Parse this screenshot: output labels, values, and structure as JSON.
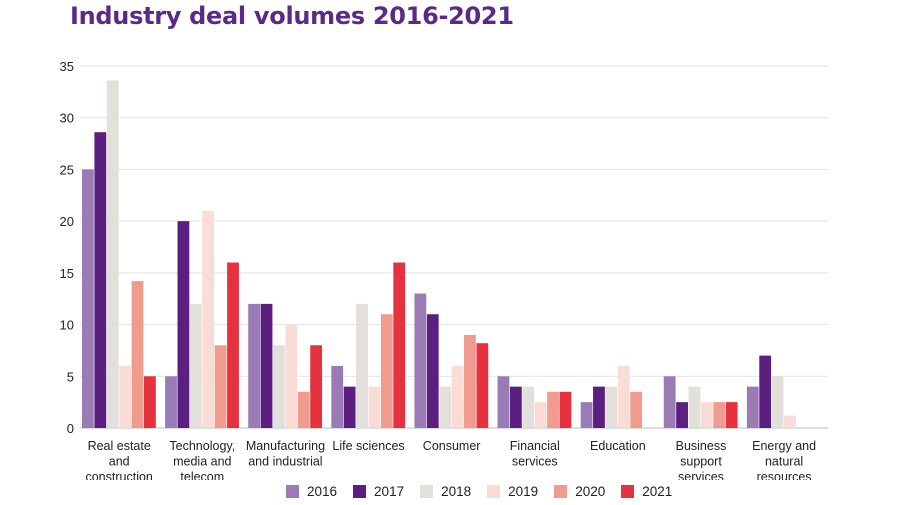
{
  "title": "Industry deal volumes 2016-2021",
  "chart_data": {
    "type": "bar",
    "title": "Industry deal volumes 2016-2021",
    "ylim": [
      0,
      35
    ],
    "yticks": [
      0,
      5,
      10,
      15,
      20,
      25,
      30,
      35
    ],
    "grid": true,
    "legend_position": "bottom",
    "categories": [
      [
        "Real estate",
        "and",
        "construction"
      ],
      [
        "Technology,",
        "media and",
        "telecom"
      ],
      [
        "Manufacturing",
        "and industrial"
      ],
      [
        "Life sciences"
      ],
      [
        "Consumer"
      ],
      [
        "Financial",
        "services"
      ],
      [
        "Education"
      ],
      [
        "Business",
        "support",
        "services"
      ],
      [
        "Energy and",
        "natural",
        "resources"
      ]
    ],
    "series": [
      {
        "name": "2016",
        "color": "#9b7bb5",
        "values": [
          25,
          5,
          12,
          6,
          13,
          5,
          2.5,
          5,
          4
        ]
      },
      {
        "name": "2017",
        "color": "#5b1f80",
        "values": [
          28.6,
          20,
          12,
          4,
          11,
          4,
          4,
          2.5,
          7
        ]
      },
      {
        "name": "2018",
        "color": "#e3e0dc",
        "values": [
          33.6,
          12,
          8,
          12,
          4,
          4,
          4,
          4,
          5
        ]
      },
      {
        "name": "2019",
        "color": "#fadcd6",
        "values": [
          6,
          21,
          10,
          4,
          6,
          2.5,
          6,
          2.5,
          1.2
        ]
      },
      {
        "name": "2020",
        "color": "#ef9b8e",
        "values": [
          14.2,
          8,
          3.5,
          11,
          9,
          3.5,
          3.5,
          2.5,
          0
        ]
      },
      {
        "name": "2021",
        "color": "#e5323e",
        "values": [
          5,
          16,
          8,
          16,
          8.2,
          3.5,
          0,
          2.5,
          0
        ]
      }
    ]
  }
}
